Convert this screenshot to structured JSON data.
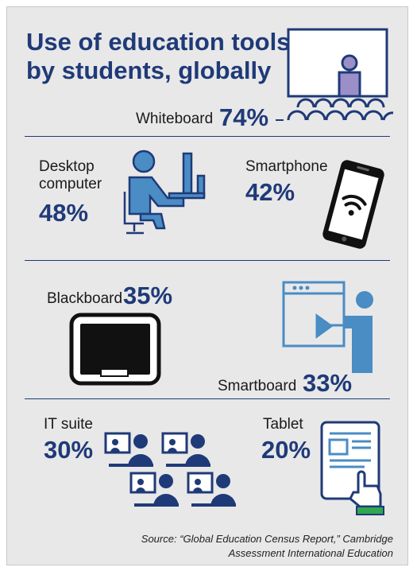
{
  "chart_data": {
    "type": "table",
    "title": "Use of education tools by students, globally",
    "items": [
      {
        "label": "Whiteboard",
        "value": 74,
        "display": "74%"
      },
      {
        "label": "Desktop computer",
        "value": 48,
        "display": "48%"
      },
      {
        "label": "Smartphone",
        "value": 42,
        "display": "42%"
      },
      {
        "label": "Blackboard",
        "value": 35,
        "display": "35%"
      },
      {
        "label": "Smartboard",
        "value": 33,
        "display": "33%"
      },
      {
        "label": "IT suite",
        "value": 30,
        "display": "30%"
      },
      {
        "label": "Tablet",
        "value": 20,
        "display": "20%"
      }
    ],
    "source": "Source: “Global Education Census Report,” Cambridge Assessment International Education"
  },
  "title_line1": "Use of education tools",
  "title_line2": "by students, globally",
  "desktop_line1": "Desktop",
  "desktop_line2": "computer",
  "source_line1": "Source: “Global Education Census Report,” Cambridge",
  "source_line2": "Assessment International Education",
  "colors": {
    "accent": "#1f3a78",
    "icon": "#4a8cc4",
    "whiteboard_figure": "#9b8fc7",
    "tablet_cuff": "#2fa84f"
  }
}
